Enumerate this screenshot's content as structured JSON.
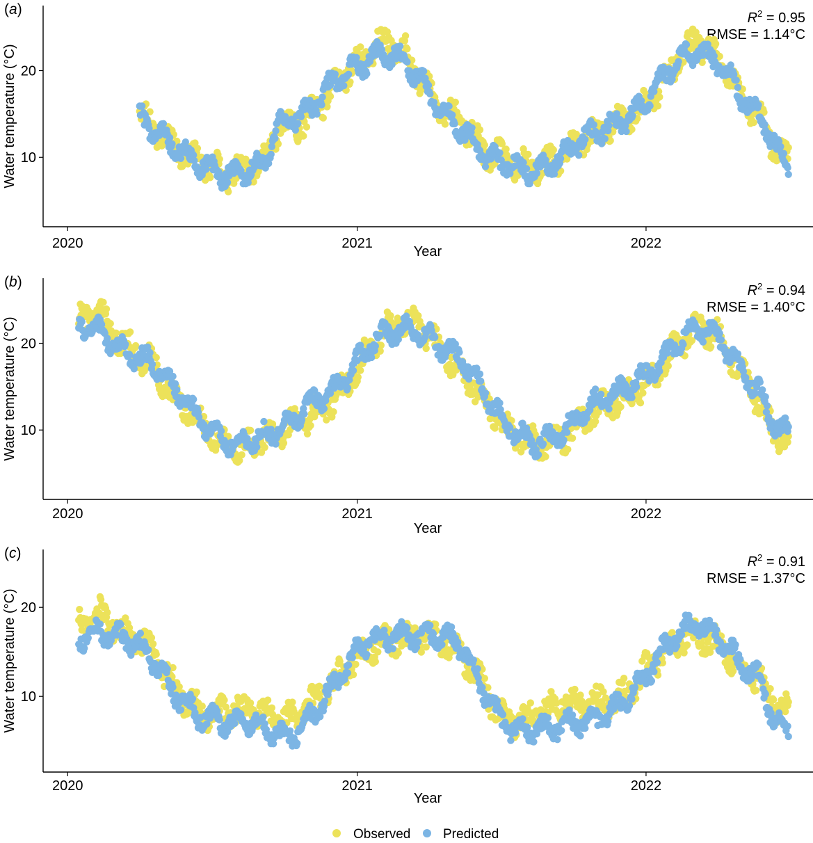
{
  "colors": {
    "observed": "#ECE25A",
    "predicted": "#7CB5E4"
  },
  "legend": {
    "observed_label": "Observed",
    "predicted_label": "Predicted"
  },
  "chart_data": [
    {
      "type": "scatter",
      "panel_label": "a",
      "xlabel": "Year",
      "ylabel": "Water temperature (°C)",
      "x_ticks": [
        "2020",
        "2021",
        "2022"
      ],
      "y_ticks": [
        10,
        20
      ],
      "xlim": [
        "2019-12-01",
        "2022-07-31"
      ],
      "ylim": [
        2.0,
        27.5
      ],
      "stats": {
        "r2_label": "R",
        "r2_value": "= 0.95",
        "rmse": "RMSE = 1.14°C"
      },
      "series": [
        {
          "name": "Observed",
          "x_start": "2020-04-01",
          "x_end": "2022-06-30",
          "y_anchors": [
            [
              0,
              15.0
            ],
            [
              0.03,
              12.3
            ],
            [
              0.065,
              10.0
            ],
            [
              0.1,
              9.8
            ],
            [
              0.14,
              8.6
            ],
            [
              0.19,
              8.8
            ],
            [
              0.215,
              13.0
            ],
            [
              0.25,
              14.0
            ],
            [
              0.3,
              19.0
            ],
            [
              0.35,
              21.5
            ],
            [
              0.38,
              23.0
            ],
            [
              0.41,
              22.0
            ],
            [
              0.44,
              19.0
            ],
            [
              0.47,
              16.0
            ],
            [
              0.5,
              13.5
            ],
            [
              0.53,
              10.0
            ],
            [
              0.58,
              9.5
            ],
            [
              0.63,
              9.8
            ],
            [
              0.66,
              10.5
            ],
            [
              0.72,
              12.8
            ],
            [
              0.76,
              15.5
            ],
            [
              0.8,
              18.0
            ],
            [
              0.83,
              21.0
            ],
            [
              0.86,
              22.8
            ],
            [
              0.9,
              20.5
            ],
            [
              0.93,
              17.5
            ],
            [
              0.96,
              14.5
            ],
            [
              0.98,
              11.0
            ],
            [
              1.0,
              9.2
            ]
          ]
        },
        {
          "name": "Predicted",
          "x_start": "2020-04-01",
          "x_end": "2022-06-30",
          "y_anchors": [
            [
              0,
              14.8
            ],
            [
              0.03,
              12.0
            ],
            [
              0.065,
              10.0
            ],
            [
              0.1,
              9.5
            ],
            [
              0.14,
              8.5
            ],
            [
              0.19,
              8.5
            ],
            [
              0.215,
              13.2
            ],
            [
              0.25,
              15.0
            ],
            [
              0.3,
              19.5
            ],
            [
              0.35,
              20.5
            ],
            [
              0.38,
              21.5
            ],
            [
              0.41,
              21.0
            ],
            [
              0.44,
              19.0
            ],
            [
              0.47,
              15.5
            ],
            [
              0.5,
              12.5
            ],
            [
              0.53,
              9.5
            ],
            [
              0.58,
              9.0
            ],
            [
              0.63,
              9.5
            ],
            [
              0.66,
              10.5
            ],
            [
              0.72,
              13.0
            ],
            [
              0.76,
              15.5
            ],
            [
              0.8,
              19.0
            ],
            [
              0.83,
              21.0
            ],
            [
              0.86,
              21.5
            ],
            [
              0.9,
              20.5
            ],
            [
              0.93,
              17.5
            ],
            [
              0.96,
              15.0
            ],
            [
              0.98,
              11.0
            ],
            [
              1.0,
              9.0
            ]
          ]
        }
      ]
    },
    {
      "type": "scatter",
      "panel_label": "b",
      "xlabel": "Year",
      "ylabel": "Water temperature (°C)",
      "x_ticks": [
        "2020",
        "2021",
        "2022"
      ],
      "y_ticks": [
        10,
        20
      ],
      "xlim": [
        "2019-12-01",
        "2022-07-31"
      ],
      "ylim": [
        2.0,
        27.5
      ],
      "stats": {
        "r2_label": "R",
        "r2_value": "= 0.94",
        "rmse": "RMSE = 1.40°C"
      },
      "series": [
        {
          "name": "Observed",
          "x_start": "2020-01-15",
          "x_end": "2022-06-30",
          "y_anchors": [
            [
              0,
              22.0
            ],
            [
              0.03,
              23.5
            ],
            [
              0.06,
              21.0
            ],
            [
              0.1,
              18.0
            ],
            [
              0.13,
              13.5
            ],
            [
              0.17,
              10.5
            ],
            [
              0.22,
              8.5
            ],
            [
              0.27,
              8.8
            ],
            [
              0.3,
              10.0
            ],
            [
              0.33,
              12.0
            ],
            [
              0.37,
              15.0
            ],
            [
              0.41,
              19.0
            ],
            [
              0.45,
              22.0
            ],
            [
              0.48,
              22.5
            ],
            [
              0.51,
              20.0
            ],
            [
              0.54,
              17.0
            ],
            [
              0.57,
              13.0
            ],
            [
              0.6,
              9.5
            ],
            [
              0.64,
              9.0
            ],
            [
              0.68,
              9.5
            ],
            [
              0.72,
              11.0
            ],
            [
              0.76,
              13.0
            ],
            [
              0.8,
              16.0
            ],
            [
              0.84,
              19.5
            ],
            [
              0.87,
              21.0
            ],
            [
              0.9,
              20.5
            ],
            [
              0.93,
              17.5
            ],
            [
              0.96,
              14.0
            ],
            [
              0.98,
              10.0
            ],
            [
              1.0,
              9.0
            ]
          ]
        },
        {
          "name": "Predicted",
          "x_start": "2020-01-15",
          "x_end": "2022-06-30",
          "y_anchors": [
            [
              0,
              21.5
            ],
            [
              0.03,
              21.5
            ],
            [
              0.06,
              20.0
            ],
            [
              0.1,
              18.0
            ],
            [
              0.13,
              14.5
            ],
            [
              0.17,
              11.0
            ],
            [
              0.22,
              9.0
            ],
            [
              0.27,
              9.0
            ],
            [
              0.3,
              10.5
            ],
            [
              0.33,
              13.5
            ],
            [
              0.37,
              16.0
            ],
            [
              0.41,
              19.5
            ],
            [
              0.45,
              21.0
            ],
            [
              0.48,
              21.5
            ],
            [
              0.51,
              20.5
            ],
            [
              0.54,
              18.5
            ],
            [
              0.57,
              14.0
            ],
            [
              0.6,
              10.0
            ],
            [
              0.64,
              9.0
            ],
            [
              0.68,
              10.0
            ],
            [
              0.72,
              12.0
            ],
            [
              0.76,
              14.0
            ],
            [
              0.8,
              17.0
            ],
            [
              0.84,
              20.0
            ],
            [
              0.87,
              21.0
            ],
            [
              0.9,
              20.5
            ],
            [
              0.93,
              17.5
            ],
            [
              0.96,
              15.0
            ],
            [
              0.98,
              11.0
            ],
            [
              1.0,
              9.5
            ]
          ]
        }
      ]
    },
    {
      "type": "scatter",
      "panel_label": "c",
      "xlabel": "Year",
      "ylabel": "Water temperature (°C)",
      "x_ticks": [
        "2020",
        "2021",
        "2022"
      ],
      "y_ticks": [
        10,
        20
      ],
      "xlim": [
        "2019-12-01",
        "2022-07-31"
      ],
      "ylim": [
        1.5,
        26.5
      ],
      "stats": {
        "r2_label": "R",
        "r2_value": "= 0.91",
        "rmse": "RMSE = 1.37°C"
      },
      "series": [
        {
          "name": "Observed",
          "x_start": "2020-01-15",
          "x_end": "2022-06-30",
          "y_anchors": [
            [
              0,
              18.5
            ],
            [
              0.03,
              20.0
            ],
            [
              0.06,
              17.0
            ],
            [
              0.1,
              14.5
            ],
            [
              0.13,
              11.5
            ],
            [
              0.17,
              9.0
            ],
            [
              0.22,
              8.0
            ],
            [
              0.27,
              7.5
            ],
            [
              0.3,
              8.0
            ],
            [
              0.33,
              10.0
            ],
            [
              0.37,
              12.0
            ],
            [
              0.41,
              15.0
            ],
            [
              0.45,
              17.0
            ],
            [
              0.48,
              17.5
            ],
            [
              0.51,
              16.0
            ],
            [
              0.54,
              14.0
            ],
            [
              0.57,
              11.0
            ],
            [
              0.6,
              8.0
            ],
            [
              0.64,
              8.0
            ],
            [
              0.68,
              8.5
            ],
            [
              0.72,
              9.0
            ],
            [
              0.76,
              10.5
            ],
            [
              0.8,
              13.0
            ],
            [
              0.84,
              15.5
            ],
            [
              0.87,
              16.5
            ],
            [
              0.9,
              16.5
            ],
            [
              0.93,
              14.0
            ],
            [
              0.96,
              11.5
            ],
            [
              0.98,
              8.5
            ],
            [
              1.0,
              7.5
            ]
          ]
        },
        {
          "name": "Predicted",
          "x_start": "2020-01-15",
          "x_end": "2022-06-30",
          "y_anchors": [
            [
              0,
              17.0
            ],
            [
              0.03,
              18.0
            ],
            [
              0.06,
              16.5
            ],
            [
              0.1,
              14.0
            ],
            [
              0.13,
              11.0
            ],
            [
              0.17,
              8.5
            ],
            [
              0.22,
              6.5
            ],
            [
              0.27,
              6.0
            ],
            [
              0.3,
              6.0
            ],
            [
              0.33,
              8.5
            ],
            [
              0.37,
              12.0
            ],
            [
              0.41,
              16.0
            ],
            [
              0.45,
              17.5
            ],
            [
              0.48,
              17.5
            ],
            [
              0.51,
              16.5
            ],
            [
              0.54,
              15.0
            ],
            [
              0.57,
              10.5
            ],
            [
              0.6,
              7.5
            ],
            [
              0.64,
              6.5
            ],
            [
              0.68,
              6.0
            ],
            [
              0.72,
              7.0
            ],
            [
              0.76,
              9.5
            ],
            [
              0.8,
              12.5
            ],
            [
              0.84,
              16.0
            ],
            [
              0.87,
              18.0
            ],
            [
              0.9,
              17.5
            ],
            [
              0.93,
              14.5
            ],
            [
              0.96,
              11.5
            ],
            [
              0.98,
              6.5
            ],
            [
              1.0,
              6.0
            ]
          ]
        }
      ]
    }
  ]
}
